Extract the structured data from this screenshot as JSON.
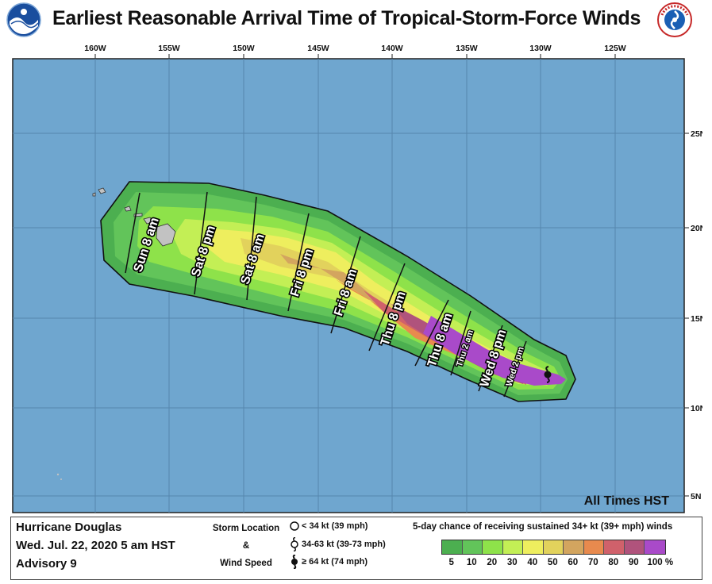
{
  "header": {
    "title": "Earliest Reasonable Arrival Time of Tropical-Storm-Force Winds",
    "left_logo": "noaa-logo",
    "right_logo": "nws-logo"
  },
  "map": {
    "longitude_labels": [
      "160W",
      "155W",
      "150W",
      "145W",
      "140W",
      "135W",
      "130W",
      "125W"
    ],
    "latitude_labels": [
      "25N",
      "20N",
      "15N",
      "10N",
      "5N"
    ],
    "arrival_times": [
      {
        "label": "Sun 8 am"
      },
      {
        "label": "Sat 8 pm"
      },
      {
        "label": "Sat 8 am"
      },
      {
        "label": "Fri 8 pm"
      },
      {
        "label": "Fri 8 am"
      },
      {
        "label": "Thu 8 pm"
      },
      {
        "label": "Thu 8 am"
      },
      {
        "label": "Thu 2 am"
      },
      {
        "label": "Wed 8 pm"
      },
      {
        "label": "Wed 2 pm"
      }
    ],
    "timezone_note": "All Times HST",
    "colors": {
      "ocean": "#6fa6cf",
      "land": "#c2c2c2",
      "grid": "#5586ad"
    }
  },
  "legend": {
    "storm_name": "Hurricane Douglas",
    "issued": "Wed. Jul. 22, 2020  5 am HST",
    "advisory": "Advisory 9",
    "storm_location_title": "Storm Location",
    "storm_location_amp": "&",
    "wind_speed_title": "Wind Speed",
    "symbols": [
      {
        "icon": "open-circle-icon",
        "label": "< 34 kt (39 mph)"
      },
      {
        "icon": "tropical-storm-icon",
        "label": "34-63 kt (39-73 mph)"
      },
      {
        "icon": "hurricane-icon",
        "label": "≥ 64 kt (74 mph)"
      }
    ],
    "probability_title": "5-day chance of receiving sustained 34+ kt (39+ mph) winds",
    "probability_colors": [
      "#4caf50",
      "#62c45a",
      "#8ee24a",
      "#c3ef55",
      "#eeee5e",
      "#e2d25c",
      "#d3a55f",
      "#e88a4e",
      "#d0616b",
      "#b0537c",
      "#a94ac9"
    ],
    "probability_ticks": [
      "5",
      "10",
      "20",
      "30",
      "40",
      "50",
      "60",
      "70",
      "80",
      "90",
      "100 %"
    ]
  }
}
